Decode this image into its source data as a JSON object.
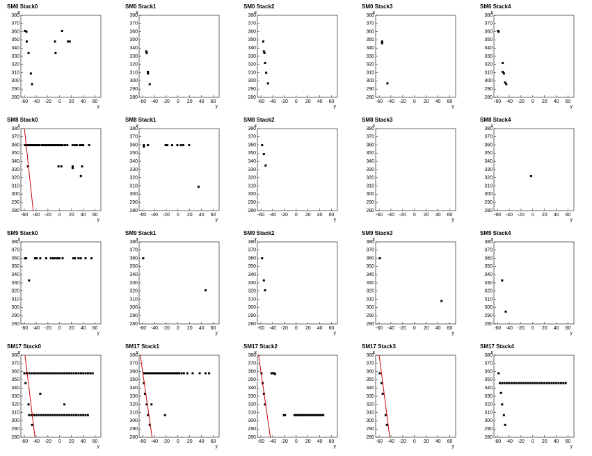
{
  "chart_data": [
    {
      "type": "scatter",
      "title": "SM0 Stack0",
      "xlabel": "y",
      "ylabel": "x",
      "xlim": [
        -66,
        70
      ],
      "ylim": [
        280,
        380
      ],
      "xticks": [
        -60,
        -40,
        -20,
        0,
        20,
        40,
        60
      ],
      "yticks": [
        280,
        290,
        300,
        310,
        320,
        330,
        340,
        350,
        360,
        370,
        380
      ],
      "color": "#000000",
      "x": [
        -59,
        -56.5,
        -56,
        -53,
        -49,
        -47,
        -8,
        -7,
        4,
        14,
        17
      ],
      "y": [
        361,
        360,
        348,
        334,
        309,
        296,
        348,
        334,
        361,
        348,
        348
      ]
    },
    {
      "type": "scatter",
      "title": "SM0 Stack1",
      "xlabel": "y",
      "ylabel": "x",
      "xlim": [
        -66,
        70
      ],
      "ylim": [
        280,
        380
      ],
      "xticks": [
        -60,
        -40,
        -20,
        0,
        20,
        40,
        60
      ],
      "yticks": [
        280,
        290,
        300,
        310,
        320,
        330,
        340,
        350,
        360,
        370,
        380
      ],
      "color": "#000000",
      "x": [
        -54,
        -53,
        -51,
        -51,
        -48
      ],
      "y": [
        336,
        334,
        311,
        309,
        296
      ]
    },
    {
      "type": "scatter",
      "title": "SM0 Stack2",
      "xlabel": "y",
      "ylabel": "x",
      "xlim": [
        -66,
        70
      ],
      "ylim": [
        280,
        380
      ],
      "xticks": [
        -60,
        -40,
        -20,
        0,
        20,
        40,
        60
      ],
      "yticks": [
        280,
        290,
        300,
        310,
        320,
        330,
        340,
        350,
        360,
        370,
        380
      ],
      "color": "#000000",
      "x": [
        -56,
        -55,
        -54,
        -53,
        -51,
        -48
      ],
      "y": [
        348,
        336,
        334,
        322,
        310,
        297
      ]
    },
    {
      "type": "scatter",
      "title": "SM0 Stack3",
      "xlabel": "y",
      "ylabel": "x",
      "xlim": [
        -66,
        70
      ],
      "ylim": [
        280,
        380
      ],
      "xticks": [
        -60,
        -40,
        -20,
        0,
        20,
        40,
        60
      ],
      "yticks": [
        280,
        290,
        300,
        310,
        320,
        330,
        340,
        350,
        360,
        370,
        380
      ],
      "color": "#000000",
      "x": [
        -55,
        -55,
        -46
      ],
      "y": [
        348,
        346,
        297
      ]
    },
    {
      "type": "scatter",
      "title": "SM0 Stack4",
      "xlabel": "y",
      "ylabel": "x",
      "xlim": [
        -66,
        70
      ],
      "ylim": [
        280,
        380
      ],
      "xticks": [
        -60,
        -40,
        -20,
        0,
        20,
        40,
        60
      ],
      "yticks": [
        280,
        290,
        300,
        310,
        320,
        330,
        340,
        350,
        360,
        370,
        380
      ],
      "color": "#000000",
      "x": [
        -59,
        -58,
        -51,
        -51,
        -49,
        -47,
        -45
      ],
      "y": [
        361,
        360,
        322,
        311,
        309,
        298,
        296
      ]
    },
    {
      "type": "scatter",
      "title": "SM8 Stack0",
      "xlabel": "y",
      "ylabel": "x",
      "xlim": [
        -66,
        70
      ],
      "ylim": [
        280,
        380
      ],
      "xticks": [
        -60,
        -40,
        -20,
        0,
        20,
        40,
        60
      ],
      "yticks": [
        280,
        290,
        300,
        310,
        320,
        330,
        340,
        350,
        360,
        370,
        380
      ],
      "color": "#000000",
      "x": [
        -59,
        -57,
        -55,
        -53,
        -51,
        -49,
        -47,
        -45,
        -43,
        -41,
        -39,
        -36,
        -34,
        -30,
        -28,
        -25,
        -22,
        -19,
        -17,
        -15,
        -12,
        -9,
        -6,
        -3,
        0,
        3,
        5,
        9,
        13,
        22,
        26,
        29,
        34,
        37,
        40,
        50,
        -54,
        -2,
        3,
        22,
        22,
        38,
        36
      ],
      "y": [
        360,
        360,
        360,
        360,
        360,
        360,
        360,
        360,
        360,
        360,
        360,
        360,
        360,
        360,
        360,
        360,
        360,
        360,
        360,
        360,
        360,
        360,
        360,
        360,
        360,
        360,
        360,
        360,
        360,
        360,
        360,
        360,
        360,
        360,
        360,
        360,
        334,
        334,
        334,
        334,
        332,
        334,
        322
      ],
      "fit": {
        "color": "#cc0000",
        "x": [
          -60,
          -45
        ],
        "y": [
          380,
          280
        ]
      }
    },
    {
      "type": "scatter",
      "title": "SM8 Stack1",
      "xlabel": "y",
      "ylabel": "x",
      "xlim": [
        -66,
        70
      ],
      "ylim": [
        280,
        380
      ],
      "xticks": [
        -60,
        -40,
        -20,
        0,
        20,
        40,
        60
      ],
      "yticks": [
        280,
        290,
        300,
        310,
        320,
        330,
        340,
        350,
        360,
        370,
        380
      ],
      "color": "#000000",
      "x": [
        -58,
        -58,
        -51,
        -21,
        -18,
        -10,
        -1,
        5,
        9,
        19,
        35
      ],
      "y": [
        360,
        358,
        360,
        360,
        360,
        360,
        360,
        360,
        360,
        360,
        309
      ]
    },
    {
      "type": "scatter",
      "title": "SM8 Stack2",
      "xlabel": "y",
      "ylabel": "x",
      "xlim": [
        -66,
        70
      ],
      "ylim": [
        280,
        380
      ],
      "xticks": [
        -60,
        -40,
        -20,
        0,
        20,
        40,
        60
      ],
      "yticks": [
        280,
        290,
        300,
        310,
        320,
        330,
        340,
        350,
        360,
        370,
        380
      ],
      "color": "#000000",
      "x": [
        -58,
        -55,
        -52
      ],
      "y": [
        360,
        349,
        335
      ]
    },
    {
      "type": "scatter",
      "title": "SM8 Stack3",
      "xlabel": "y",
      "ylabel": "x",
      "xlim": [
        -66,
        70
      ],
      "ylim": [
        280,
        380
      ],
      "xticks": [
        -60,
        -40,
        -20,
        0,
        20,
        40,
        60
      ],
      "yticks": [
        280,
        290,
        300,
        310,
        320,
        330,
        340,
        350,
        360,
        370,
        380
      ],
      "color": "#000000",
      "x": [],
      "y": []
    },
    {
      "type": "scatter",
      "title": "SM8 Stack4",
      "xlabel": "y",
      "ylabel": "x",
      "xlim": [
        -66,
        70
      ],
      "ylim": [
        280,
        380
      ],
      "xticks": [
        -60,
        -40,
        -20,
        0,
        20,
        40,
        60
      ],
      "yticks": [
        280,
        290,
        300,
        310,
        320,
        330,
        340,
        350,
        360,
        370,
        380
      ],
      "color": "#000000",
      "x": [
        -3
      ],
      "y": [
        322
      ]
    },
    {
      "type": "scatter",
      "title": "SM9 Stack0",
      "xlabel": "y",
      "ylabel": "x",
      "xlim": [
        -66,
        70
      ],
      "ylim": [
        280,
        380
      ],
      "xticks": [
        -60,
        -40,
        -20,
        0,
        20,
        40,
        60
      ],
      "yticks": [
        280,
        290,
        300,
        310,
        320,
        330,
        340,
        350,
        360,
        370,
        380
      ],
      "color": "#000000",
      "x": [
        -59,
        -57,
        -42,
        -39,
        -33,
        -23,
        -15,
        -11,
        -8,
        -4,
        -0.5,
        5,
        23,
        26,
        32,
        36,
        44,
        54,
        -52
      ],
      "y": [
        360,
        360,
        360,
        360,
        360,
        360,
        360,
        360,
        360,
        360,
        360,
        360,
        360,
        360,
        360,
        360,
        360,
        360,
        333
      ]
    },
    {
      "type": "scatter",
      "title": "SM9 Stack1",
      "xlabel": "y",
      "ylabel": "x",
      "xlim": [
        -66,
        70
      ],
      "ylim": [
        280,
        380
      ],
      "xticks": [
        -60,
        -40,
        -20,
        0,
        20,
        40,
        60
      ],
      "yticks": [
        280,
        290,
        300,
        310,
        320,
        330,
        340,
        350,
        360,
        370,
        380
      ],
      "color": "#000000",
      "x": [
        -59,
        47
      ],
      "y": [
        360,
        321
      ]
    },
    {
      "type": "scatter",
      "title": "SM9 Stack2",
      "xlabel": "y",
      "ylabel": "x",
      "xlim": [
        -66,
        70
      ],
      "ylim": [
        280,
        380
      ],
      "xticks": [
        -60,
        -40,
        -20,
        0,
        20,
        40,
        60
      ],
      "yticks": [
        280,
        290,
        300,
        310,
        320,
        330,
        340,
        350,
        360,
        370,
        380
      ],
      "color": "#000000",
      "x": [
        -58,
        -55,
        -53
      ],
      "y": [
        360,
        333,
        321
      ]
    },
    {
      "type": "scatter",
      "title": "SM9 Stack3",
      "xlabel": "y",
      "ylabel": "x",
      "xlim": [
        -66,
        70
      ],
      "ylim": [
        280,
        380
      ],
      "xticks": [
        -60,
        -40,
        -20,
        0,
        20,
        40,
        60
      ],
      "yticks": [
        280,
        290,
        300,
        310,
        320,
        330,
        340,
        350,
        360,
        370,
        380
      ],
      "color": "#000000",
      "x": [
        -59,
        46
      ],
      "y": [
        360,
        308
      ]
    },
    {
      "type": "scatter",
      "title": "SM9 Stack4",
      "xlabel": "y",
      "ylabel": "x",
      "xlim": [
        -66,
        70
      ],
      "ylim": [
        280,
        380
      ],
      "xticks": [
        -60,
        -40,
        -20,
        0,
        20,
        40,
        60
      ],
      "yticks": [
        280,
        290,
        300,
        310,
        320,
        330,
        340,
        350,
        360,
        370,
        380
      ],
      "color": "#000000",
      "x": [
        -52,
        -46
      ],
      "y": [
        333,
        295
      ]
    },
    {
      "type": "scatter",
      "title": "SM17 Stack0",
      "xlabel": "y",
      "ylabel": "x",
      "xlim": [
        -66,
        70
      ],
      "ylim": [
        280,
        380
      ],
      "xticks": [
        -60,
        -40,
        -20,
        0,
        20,
        40,
        60
      ],
      "yticks": [
        280,
        290,
        300,
        310,
        320,
        330,
        340,
        350,
        360,
        370,
        380
      ],
      "color": "#000000",
      "x": [
        -60,
        -56,
        -52,
        -48,
        -44,
        -40,
        -36,
        -32,
        -28,
        -24,
        -20,
        -16,
        -12,
        -8,
        -4,
        0,
        4,
        8,
        12,
        16,
        20,
        24,
        28,
        32,
        36,
        40,
        44,
        48,
        52,
        56,
        -52,
        -48,
        -44,
        -40,
        -36,
        -32,
        -28,
        -24,
        -20,
        -16,
        -12,
        -8,
        -4,
        0,
        4,
        8,
        12,
        16,
        20,
        24,
        28,
        32,
        36,
        40,
        44,
        48,
        -58,
        -53,
        -47,
        -33,
        8
      ],
      "y": [
        358,
        358,
        358,
        358,
        358,
        358,
        358,
        358,
        358,
        358,
        358,
        358,
        358,
        358,
        358,
        358,
        358,
        358,
        358,
        358,
        358,
        358,
        358,
        358,
        358,
        358,
        358,
        358,
        358,
        358,
        307,
        307,
        307,
        307,
        307,
        307,
        307,
        307,
        307,
        307,
        307,
        307,
        307,
        307,
        307,
        307,
        307,
        307,
        307,
        307,
        307,
        307,
        307,
        307,
        307,
        307,
        346,
        320,
        295,
        333,
        320
      ],
      "fit": {
        "color": "#cc0000",
        "x": [
          -59,
          -42
        ],
        "y": [
          380,
          280
        ]
      }
    },
    {
      "type": "scatter",
      "title": "SM17 Stack1",
      "xlabel": "y",
      "ylabel": "x",
      "xlim": [
        -66,
        70
      ],
      "ylim": [
        280,
        380
      ],
      "xticks": [
        -60,
        -40,
        -20,
        0,
        20,
        40,
        60
      ],
      "yticks": [
        280,
        290,
        300,
        310,
        320,
        330,
        340,
        350,
        360,
        370,
        380
      ],
      "color": "#000000",
      "x": [
        -58,
        -55,
        -52,
        -49,
        -46,
        -43,
        -40,
        -37,
        -34,
        -31,
        -28,
        -25,
        -22,
        -19,
        -16,
        -13,
        -10,
        -7,
        -4,
        -1,
        2,
        6,
        10,
        16,
        25,
        37,
        47,
        53,
        -58,
        -56,
        -53,
        -51,
        -48,
        -45,
        -22
      ],
      "y": [
        358,
        358,
        358,
        358,
        358,
        358,
        358,
        358,
        358,
        358,
        358,
        358,
        358,
        358,
        358,
        358,
        358,
        358,
        358,
        358,
        358,
        358,
        358,
        358,
        358,
        358,
        358,
        358,
        346,
        333,
        320,
        307,
        295,
        320,
        307
      ],
      "fit": {
        "color": "#cc0000",
        "x": [
          -64,
          -44
        ],
        "y": [
          380,
          280
        ]
      }
    },
    {
      "type": "scatter",
      "title": "SM17 Stack2",
      "xlabel": "y",
      "ylabel": "x",
      "xlim": [
        -66,
        70
      ],
      "ylim": [
        280,
        380
      ],
      "xticks": [
        -60,
        -40,
        -20,
        0,
        20,
        40,
        60
      ],
      "yticks": [
        280,
        290,
        300,
        310,
        320,
        330,
        340,
        350,
        360,
        370,
        380
      ],
      "color": "#000000",
      "x": [
        -59,
        -57,
        -55,
        -53,
        -42,
        -39,
        -37,
        -36,
        -21,
        -19,
        -3,
        -1,
        1,
        3,
        5,
        7,
        10,
        13,
        16,
        19,
        22,
        25,
        28,
        31,
        34,
        37,
        40,
        43,
        46
      ],
      "y": [
        358,
        346,
        333,
        320,
        358,
        358,
        358,
        357,
        307,
        307,
        307,
        307,
        307,
        307,
        307,
        307,
        307,
        307,
        307,
        307,
        307,
        307,
        307,
        307,
        307,
        307,
        307,
        307,
        307
      ],
      "fit": {
        "color": "#cc0000",
        "x": [
          -64,
          -44
        ],
        "y": [
          380,
          280
        ]
      }
    },
    {
      "type": "scatter",
      "title": "SM17 Stack3",
      "xlabel": "y",
      "ylabel": "x",
      "xlim": [
        -66,
        70
      ],
      "ylim": [
        280,
        380
      ],
      "xticks": [
        -60,
        -40,
        -20,
        0,
        20,
        40,
        60
      ],
      "yticks": [
        280,
        290,
        300,
        310,
        320,
        330,
        340,
        350,
        360,
        370,
        380
      ],
      "color": "#000000",
      "x": [
        -59,
        -56,
        -54,
        -49,
        -47
      ],
      "y": [
        358,
        346,
        333,
        307,
        295
      ],
      "fit": {
        "color": "#cc0000",
        "x": [
          -60,
          -42
        ],
        "y": [
          380,
          280
        ]
      }
    },
    {
      "type": "scatter",
      "title": "SM17 Stack4",
      "xlabel": "y",
      "ylabel": "x",
      "xlim": [
        -66,
        70
      ],
      "ylim": [
        280,
        380
      ],
      "xticks": [
        -60,
        -40,
        -20,
        0,
        20,
        40,
        60
      ],
      "yticks": [
        280,
        290,
        300,
        310,
        320,
        330,
        340,
        350,
        360,
        370,
        380
      ],
      "color": "#000000",
      "x": [
        -58,
        -54,
        -52,
        -49,
        -47,
        -56,
        -52,
        -48,
        -44,
        -40,
        -36,
        -32,
        -28,
        -24,
        -20,
        -16,
        -12,
        -8,
        -4,
        0,
        4,
        8,
        12,
        16,
        20,
        24,
        28,
        32,
        36,
        40,
        44,
        48,
        52,
        56
      ],
      "y": [
        358,
        334,
        320,
        307,
        295,
        346,
        346,
        346,
        346,
        346,
        346,
        346,
        346,
        346,
        346,
        346,
        346,
        346,
        346,
        346,
        346,
        346,
        346,
        346,
        346,
        346,
        346,
        346,
        346,
        346,
        346,
        346,
        346,
        346
      ]
    }
  ]
}
